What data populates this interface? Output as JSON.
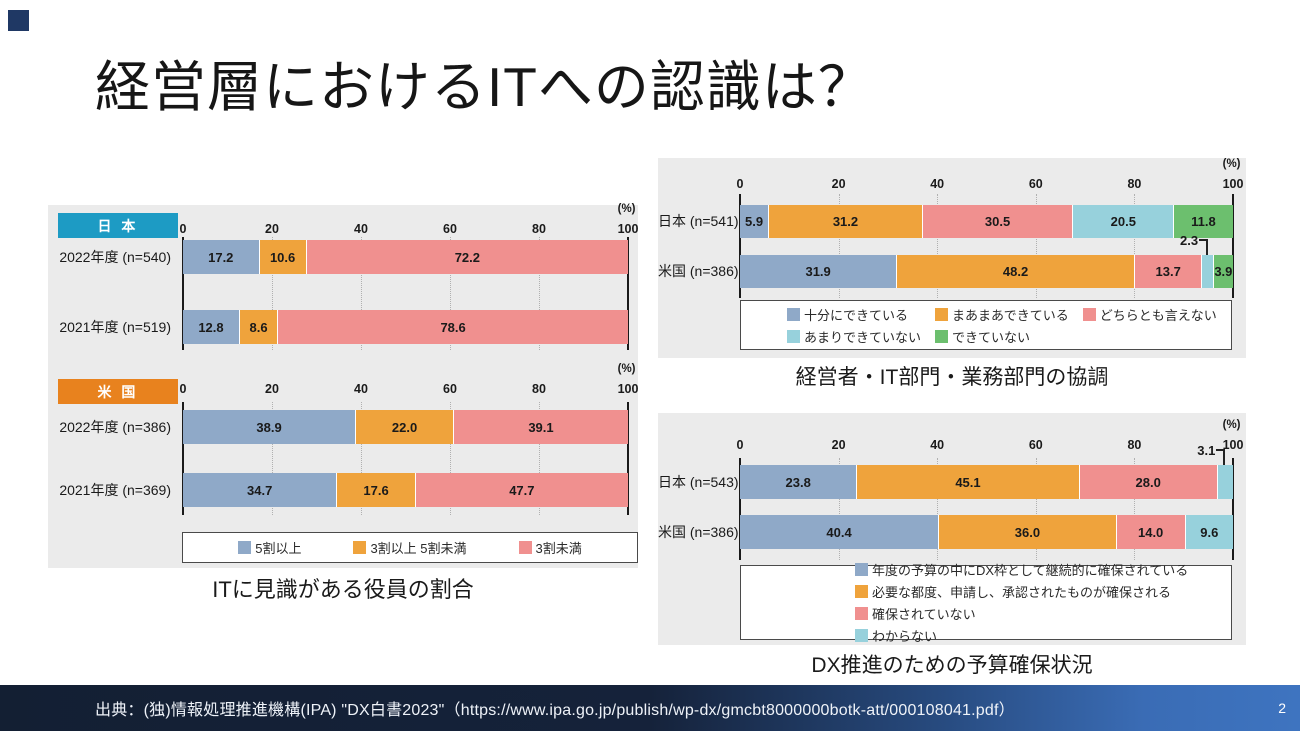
{
  "slide": {
    "title": "経営層におけるITへの認識は？",
    "page_number": "2",
    "source": "出典：(独)情報処理推進機構(IPA) \"DX白書2023\"（https://www.ipa.go.jp/publish/wp-dx/gmcbt8000000botk-att/000108041.pdf）"
  },
  "colors": {
    "corner_accent": "#1f3864",
    "panel_bg": "#ebebeb",
    "axis_line": "#1a1a1a",
    "gridline": "#b0b0b0",
    "legend_border": "#4a4a4a",
    "footer_gradient_start": "#131f33",
    "footer_gradient_end": "#3e74c0",
    "japan_header": "#1d9bc4",
    "us_header": "#e8821e"
  },
  "chart_data": [
    {
      "id": "it-knowledge-chart",
      "type": "bar",
      "subtype": "horizontal-stacked",
      "title": "ITに見識がある役員の割合",
      "unit_label": "(%)",
      "xlim": [
        0,
        100
      ],
      "xticks": [
        0,
        20,
        40,
        60,
        80,
        100
      ],
      "grid": true,
      "legend_position": "bottom",
      "series_colors": [
        "#8fa9c8",
        "#efa33c",
        "#f0908f"
      ],
      "legend": [
        "5割以上",
        "3割以上 5割未満",
        "3割未満"
      ],
      "sections": [
        {
          "header": "日 本",
          "header_color": "#1d9bc4",
          "rows": [
            {
              "category": "2022年度 (n=540)",
              "values": [
                17.2,
                10.6,
                72.2
              ]
            },
            {
              "category": "2021年度 (n=519)",
              "values": [
                12.8,
                8.6,
                78.6
              ]
            }
          ]
        },
        {
          "header": "米 国",
          "header_color": "#e8821e",
          "rows": [
            {
              "category": "2022年度 (n=386)",
              "values": [
                38.9,
                22.0,
                39.1
              ]
            },
            {
              "category": "2021年度 (n=369)",
              "values": [
                34.7,
                17.6,
                47.7
              ]
            }
          ]
        }
      ]
    },
    {
      "id": "cooperation-chart",
      "type": "bar",
      "subtype": "horizontal-stacked",
      "title": "経営者・IT部門・業務部門の協調",
      "unit_label": "(%)",
      "xlim": [
        0,
        100
      ],
      "xticks": [
        0,
        20,
        40,
        60,
        80,
        100
      ],
      "grid": true,
      "legend_position": "bottom",
      "series_colors": [
        "#8fa9c8",
        "#efa33c",
        "#f0908f",
        "#97d1dc",
        "#6cbf6e"
      ],
      "legend": [
        "十分にできている",
        "まあまあできている",
        "どちらとも言えない",
        "あまりできていない",
        "できていない"
      ],
      "sections": [
        {
          "rows": [
            {
              "category": "日本 (n=541)",
              "values": [
                5.9,
                31.2,
                30.5,
                20.5,
                11.8
              ]
            },
            {
              "category": "米国 (n=386)",
              "values": [
                31.9,
                48.2,
                13.7,
                2.3,
                3.9
              ],
              "callout_index": 3
            }
          ]
        }
      ]
    },
    {
      "id": "dx-budget-chart",
      "type": "bar",
      "subtype": "horizontal-stacked",
      "title": "DX推進のための予算確保状況",
      "unit_label": "(%)",
      "xlim": [
        0,
        100
      ],
      "xticks": [
        0,
        20,
        40,
        60,
        80,
        100
      ],
      "grid": true,
      "legend_position": "bottom",
      "series_colors": [
        "#8fa9c8",
        "#efa33c",
        "#f0908f",
        "#97d1dc"
      ],
      "legend": [
        "年度の予算の中にDX枠として継続的に確保されている",
        "必要な都度、申請し、承認されたものが確保される",
        "確保されていない",
        "わからない"
      ],
      "sections": [
        {
          "rows": [
            {
              "category": "日本 (n=543)",
              "values": [
                23.8,
                45.1,
                28.0,
                3.1
              ],
              "callout_index": 3
            },
            {
              "category": "米国 (n=386)",
              "values": [
                40.4,
                36.0,
                14.0,
                9.6
              ]
            }
          ]
        }
      ]
    }
  ]
}
